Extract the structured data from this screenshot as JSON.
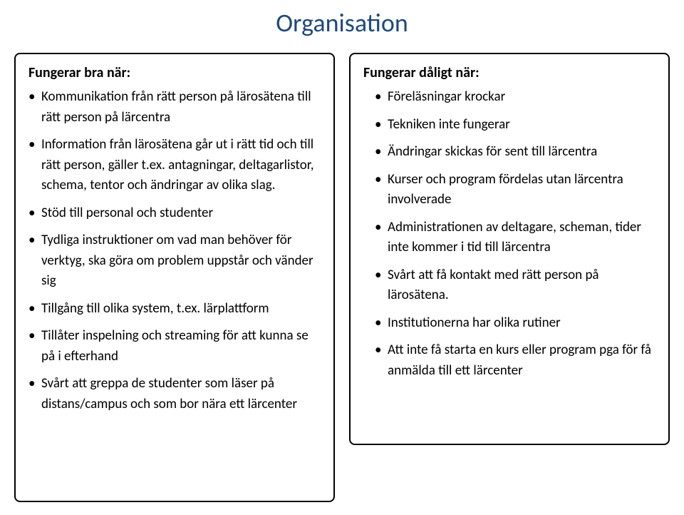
{
  "title": "Organisation",
  "title_color": "#1f497d",
  "title_fontsize": 36,
  "body_fontsize": 19,
  "heading_fontsize": 20,
  "border_color": "#000000",
  "text_color": "#000000",
  "background_color": "#ffffff",
  "left": {
    "heading": "Fungerar bra när:",
    "items": [
      "Kommunikation från rätt person på lärosätena till rätt person på lärcentra",
      "Information från lärosätena går ut i rätt tid och till rätt person, gäller t.ex. antagningar, deltagarlistor, schema, tentor och ändringar av olika slag.",
      "Stöd till personal och studenter",
      "Tydliga instruktioner om vad man behöver för verktyg, ska göra om problem uppstår och vänder sig",
      "Tillgång till olika system, t.ex. lärplattform",
      "Tillåter inspelning och streaming för att kunna se på i efterhand",
      "Svårt att greppa de studenter som läser på distans/campus och som bor nära ett lärcenter"
    ]
  },
  "right": {
    "heading": "Fungerar dåligt när:",
    "items": [
      "Föreläsningar krockar",
      "Tekniken inte fungerar",
      "Ändringar skickas för sent till lärcentra",
      "Kurser och program fördelas utan lärcentra involverade",
      "Administrationen av deltagare, scheman, tider inte kommer i tid till lärcentra",
      "Svårt att få kontakt med rätt person på lärosätena.",
      "Institutionerna har olika rutiner",
      "Att inte få starta en kurs eller program pga för få anmälda till ett lärcenter"
    ]
  }
}
